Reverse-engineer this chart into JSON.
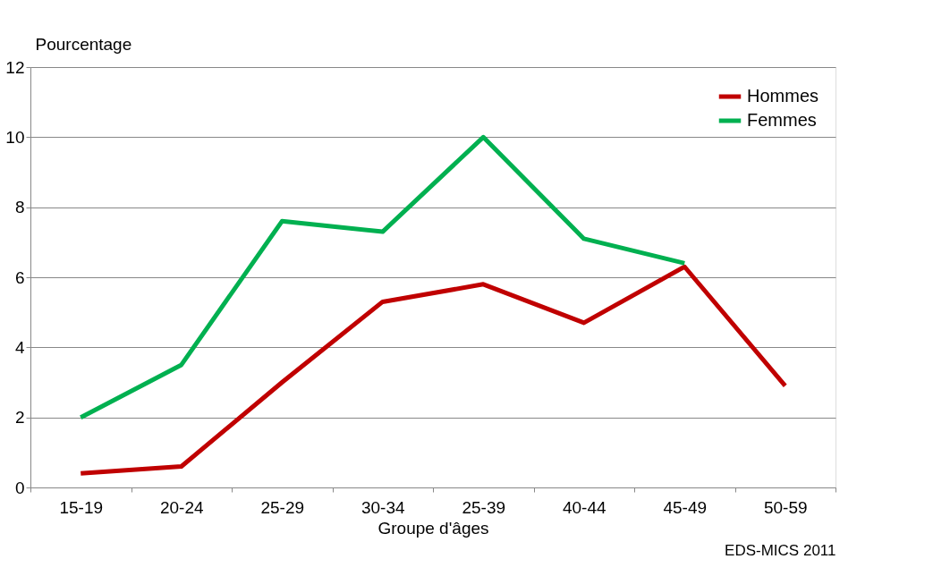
{
  "chart_data": {
    "type": "line",
    "xlabel": "Groupe d'âges",
    "ylabel": "Pourcentage",
    "categories": [
      "15-19",
      "20-24",
      "25-29",
      "30-34",
      "25-39",
      "40-44",
      "45-49",
      "50-59"
    ],
    "series": [
      {
        "name": "Hommes",
        "color": "#c00000",
        "values": [
          0.4,
          0.6,
          3.0,
          5.3,
          5.8,
          4.7,
          6.3,
          2.9
        ]
      },
      {
        "name": "Femmes",
        "color": "#00b050",
        "values": [
          2.0,
          3.5,
          7.6,
          7.3,
          10.0,
          7.1,
          6.4,
          null
        ]
      }
    ],
    "ylim": [
      0,
      12
    ],
    "yticks": [
      0,
      2,
      4,
      6,
      8,
      10,
      12
    ],
    "grid": "y",
    "legend": "top right",
    "marker": "none",
    "line_style": "solid",
    "annotations": [
      "EDS-MICS 2011"
    ]
  }
}
